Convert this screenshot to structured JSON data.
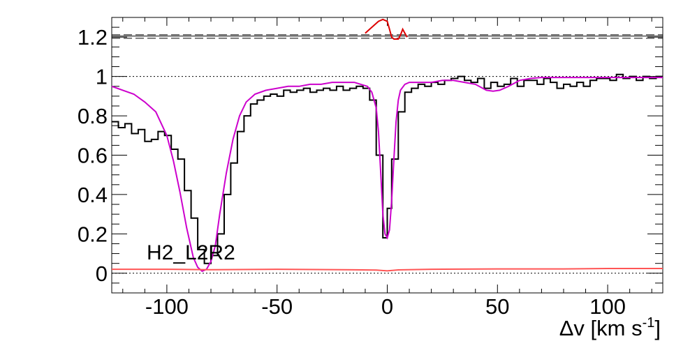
{
  "chart_data": {
    "type": "line",
    "title": "",
    "xlabel": "Δv [km s",
    "xlabel_sup": "-1",
    "xlabel_close": "]",
    "ylabel": "",
    "xlim": [
      -125,
      125
    ],
    "ylim": [
      -0.1,
      1.3
    ],
    "x_ticks": [
      -100,
      -50,
      0,
      50,
      100
    ],
    "x_tick_labels": [
      "-100",
      "-50",
      "0",
      "50",
      "100"
    ],
    "y_ticks": [
      0,
      0.2,
      0.4,
      0.6,
      0.8,
      1,
      1.2
    ],
    "y_tick_labels": [
      "0",
      "0.2",
      "0.4",
      "0.6",
      "0.8",
      "1",
      "1.2"
    ],
    "grid": false,
    "annotation": "H2_L2R2",
    "reference_lines": {
      "continuum": 1.0,
      "zero": 0.0,
      "upper_solid": 1.205,
      "upper_dashed": [
        1.212,
        1.194
      ]
    },
    "colors": {
      "data": "#000000",
      "model": "#cc00cc",
      "error": "#ff5555",
      "residual": "#dd0000",
      "reference": "#000000"
    },
    "series": [
      {
        "kind": "step",
        "x": [
          -125,
          -122,
          -119,
          -116,
          -113,
          -110,
          -107,
          -104,
          -101,
          -98,
          -95,
          -92,
          -89,
          -86,
          -83,
          -80,
          -77,
          -74,
          -71,
          -68,
          -65,
          -62,
          -59,
          -56,
          -53,
          -50,
          -47,
          -44,
          -41,
          -38,
          -35,
          -32,
          -29,
          -26,
          -23,
          -20,
          -17,
          -14,
          -11,
          -8,
          -5,
          -2,
          0,
          2,
          5,
          8,
          11,
          14,
          17,
          20,
          23,
          26,
          29,
          32,
          35,
          38,
          41,
          44,
          47,
          50,
          53,
          56,
          59,
          62,
          65,
          68,
          71,
          74,
          77,
          80,
          83,
          86,
          89,
          92,
          95,
          98,
          101,
          104,
          107,
          110,
          113,
          116,
          119,
          122
        ],
        "y": [
          0.77,
          0.74,
          0.76,
          0.71,
          0.73,
          0.67,
          0.68,
          0.72,
          0.7,
          0.63,
          0.58,
          0.42,
          0.28,
          0.12,
          0.05,
          0.09,
          0.2,
          0.4,
          0.56,
          0.72,
          0.8,
          0.86,
          0.88,
          0.9,
          0.91,
          0.9,
          0.93,
          0.92,
          0.93,
          0.94,
          0.92,
          0.93,
          0.94,
          0.93,
          0.95,
          0.93,
          0.94,
          0.95,
          0.94,
          0.88,
          0.6,
          0.18,
          0.33,
          0.58,
          0.82,
          0.92,
          0.94,
          0.96,
          0.95,
          0.97,
          0.96,
          0.98,
          0.99,
          1.0,
          0.98,
          0.97,
          0.99,
          0.94,
          0.97,
          0.95,
          0.96,
          0.99,
          0.95,
          0.98,
          0.98,
          0.96,
          0.99,
          0.97,
          0.94,
          0.96,
          0.95,
          0.97,
          0.95,
          0.98,
          0.99,
          0.99,
          0.98,
          1.01,
          0.99,
          1.0,
          0.98,
          1.0,
          0.99,
          1.0
        ]
      },
      {
        "kind": "model",
        "x": [
          -125,
          -120,
          -115,
          -110,
          -105,
          -100,
          -97,
          -94,
          -91,
          -88,
          -86,
          -84,
          -82,
          -80,
          -78,
          -76,
          -73,
          -70,
          -67,
          -64,
          -60,
          -55,
          -50,
          -45,
          -40,
          -35,
          -30,
          -25,
          -20,
          -15,
          -12,
          -9,
          -7,
          -5,
          -4,
          -3,
          -2,
          -1,
          0,
          1,
          2,
          3,
          4,
          5,
          6,
          8,
          10,
          13,
          16,
          20,
          25,
          30,
          35,
          40,
          45,
          48,
          51,
          55,
          60,
          65,
          70,
          75,
          80,
          90,
          100,
          110,
          125
        ],
        "y": [
          0.95,
          0.93,
          0.91,
          0.87,
          0.82,
          0.7,
          0.57,
          0.41,
          0.23,
          0.08,
          0.03,
          0.01,
          0.02,
          0.06,
          0.14,
          0.3,
          0.51,
          0.68,
          0.8,
          0.87,
          0.91,
          0.93,
          0.94,
          0.95,
          0.95,
          0.96,
          0.96,
          0.97,
          0.97,
          0.97,
          0.96,
          0.95,
          0.92,
          0.84,
          0.72,
          0.52,
          0.3,
          0.2,
          0.18,
          0.22,
          0.37,
          0.58,
          0.77,
          0.88,
          0.93,
          0.96,
          0.97,
          0.97,
          0.97,
          0.97,
          0.98,
          0.98,
          0.97,
          0.96,
          0.93,
          0.925,
          0.93,
          0.95,
          0.98,
          0.99,
          0.995,
          0.995,
          0.995,
          0.995,
          0.995,
          0.995,
          0.995
        ]
      },
      {
        "kind": "error",
        "x": [
          -125,
          -100,
          -80,
          -50,
          -20,
          -5,
          0,
          5,
          20,
          50,
          80,
          100,
          125
        ],
        "y": [
          0.02,
          0.02,
          0.018,
          0.02,
          0.018,
          0.016,
          0.012,
          0.017,
          0.02,
          0.022,
          0.022,
          0.024,
          0.024
        ]
      },
      {
        "kind": "residual",
        "x": [
          -10,
          -8,
          -6,
          -4,
          -2,
          0,
          1,
          2,
          3,
          4,
          5,
          6,
          7,
          8,
          9
        ],
        "y": [
          1.22,
          1.24,
          1.26,
          1.28,
          1.29,
          1.28,
          1.24,
          1.2,
          1.19,
          1.19,
          1.19,
          1.21,
          1.24,
          1.22,
          1.2
        ]
      }
    ]
  }
}
